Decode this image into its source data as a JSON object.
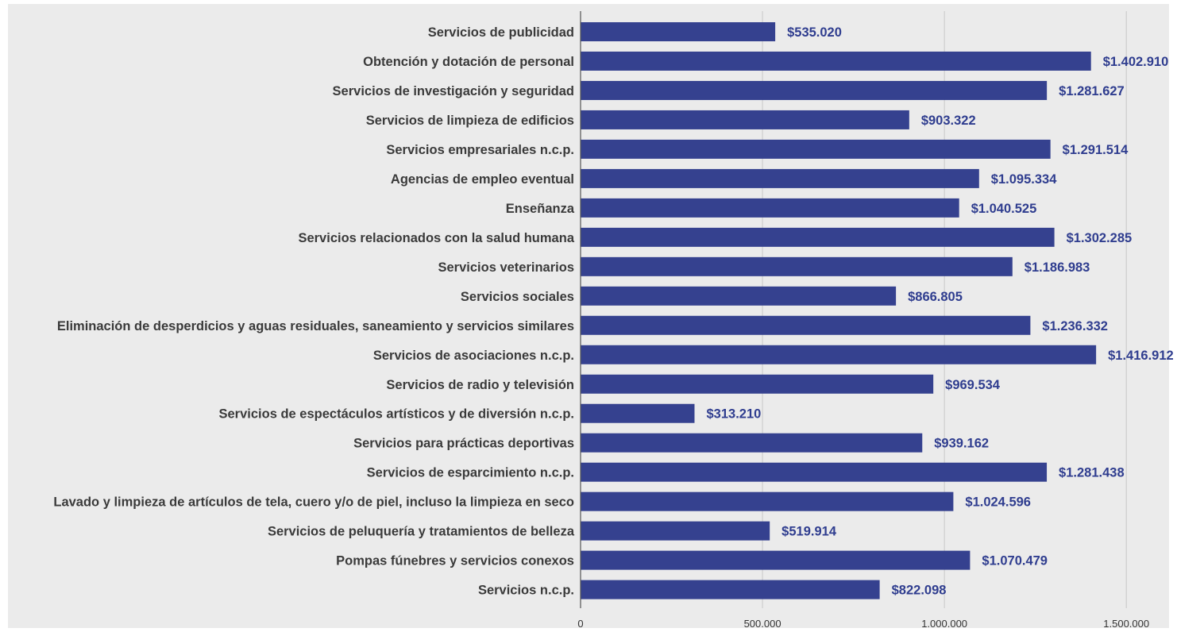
{
  "chart_data": {
    "type": "bar",
    "orientation": "horizontal",
    "title": "",
    "xlabel": "",
    "ylabel": "",
    "categories": [
      "Servicios de publicidad",
      "Obtención y dotación de personal",
      "Servicios de investigación y seguridad",
      "Servicios de limpieza de edificios",
      "Servicios empresariales n.c.p.",
      "Agencias de empleo eventual",
      "Enseñanza",
      "Servicios relacionados con la salud humana",
      "Servicios veterinarios",
      "Servicios sociales",
      "Eliminación de desperdicios y aguas residuales, saneamiento y servicios similares",
      "Servicios de asociaciones n.c.p.",
      "Servicios de radio y televisión",
      "Servicios de espectáculos artísticos y de diversión  n.c.p.",
      "Servicios para prácticas deportivas",
      "Servicios de esparcimiento n.c.p.",
      "Lavado y limpieza de artículos de tela, cuero y/o de piel, incluso la limpieza en seco",
      "Servicios de peluquería y  tratamientos de belleza",
      "Pompas fúnebres y servicios conexos",
      "Servicios n.c.p."
    ],
    "values": [
      535020,
      1402910,
      1281627,
      903322,
      1291514,
      1095334,
      1040525,
      1302285,
      1186983,
      866805,
      1236332,
      1416912,
      969534,
      313210,
      939162,
      1281438,
      1024596,
      519914,
      1070479,
      822098
    ],
    "value_labels": [
      "$535.020",
      "$1.402.910",
      "$1.281.627",
      "$903.322",
      "$1.291.514",
      "$1.095.334",
      "$1.040.525",
      "$1.302.285",
      "$1.186.983",
      "$866.805",
      "$1.236.332",
      "$1.416.912",
      "$969.534",
      "$313.210",
      "$939.162",
      "$1.281.438",
      "$1.024.596",
      "$519.914",
      "$1.070.479",
      "$822.098"
    ],
    "xlim": [
      0,
      1600000
    ],
    "xticks": [
      0,
      500000,
      1000000,
      1500000
    ],
    "xtick_labels": [
      "0",
      "500.000",
      "1.000.000",
      "1.500.000"
    ],
    "grid": true,
    "legend": "none",
    "colors": {
      "bar": "#35418f",
      "value_label": "#2f3d8f",
      "category_label": "#3a3a3a",
      "background": "#ebebeb",
      "gridline": "#c8c8c8",
      "axis": "#555555"
    }
  }
}
